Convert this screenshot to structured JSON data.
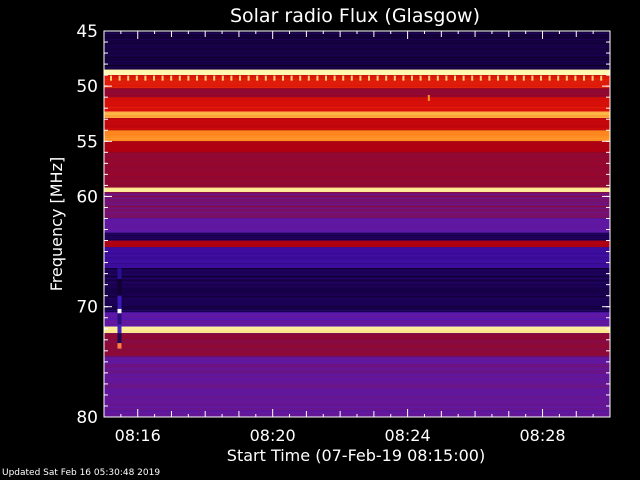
{
  "chart_data": {
    "type": "heatmap",
    "title": "Solar radio Flux (Glasgow)",
    "xlabel": "Start Time (07-Feb-19 08:15:00)",
    "ylabel": "Frequency [MHz]",
    "x_ticks": [
      "08:16",
      "08:20",
      "08:24",
      "08:28"
    ],
    "x_tick_minutes": [
      1,
      5,
      9,
      13
    ],
    "xlim_minutes": [
      0,
      15
    ],
    "y_ticks": [
      45,
      50,
      55,
      60,
      70,
      80
    ],
    "y_tick_labels": [
      "45",
      "50",
      "55",
      "60",
      "70",
      "80"
    ],
    "ylim": [
      45,
      80
    ],
    "y_axis_inverted": true,
    "bands": [
      {
        "f0": 45.0,
        "f1": 48.5,
        "level": 0.08
      },
      {
        "f0": 48.5,
        "f1": 49.0,
        "level": 0.98
      },
      {
        "f0": 49.0,
        "f1": 50.2,
        "level": 0.62
      },
      {
        "f0": 50.2,
        "f1": 51.0,
        "level": 0.42
      },
      {
        "f0": 51.0,
        "f1": 52.3,
        "level": 0.6
      },
      {
        "f0": 52.3,
        "f1": 52.9,
        "level": 0.85
      },
      {
        "f0": 52.9,
        "f1": 54.0,
        "level": 0.55
      },
      {
        "f0": 54.0,
        "f1": 55.0,
        "level": 0.8
      },
      {
        "f0": 55.0,
        "f1": 56.0,
        "level": 0.5
      },
      {
        "f0": 56.0,
        "f1": 59.2,
        "level": 0.42
      },
      {
        "f0": 59.2,
        "f1": 59.6,
        "level": 0.95
      },
      {
        "f0": 59.6,
        "f1": 62.0,
        "level": 0.36
      },
      {
        "f0": 62.0,
        "f1": 63.3,
        "level": 0.3
      },
      {
        "f0": 63.3,
        "f1": 64.0,
        "level": 0.12
      },
      {
        "f0": 64.0,
        "f1": 64.6,
        "level": 0.5
      },
      {
        "f0": 64.6,
        "f1": 66.5,
        "level": 0.2
      },
      {
        "f0": 66.5,
        "f1": 70.5,
        "level": 0.1
      },
      {
        "f0": 70.5,
        "f1": 71.8,
        "level": 0.3
      },
      {
        "f0": 71.8,
        "f1": 72.4,
        "level": 0.95
      },
      {
        "f0": 72.4,
        "f1": 74.5,
        "level": 0.4
      },
      {
        "f0": 74.5,
        "f1": 80.0,
        "level": 0.32
      }
    ],
    "colormap": [
      "#000000",
      "#1a0050",
      "#3d0d9e",
      "#5b1ab0",
      "#8a0a3a",
      "#b00010",
      "#d8100a",
      "#f04010",
      "#ff8a20",
      "#ffd060",
      "#ffffc0"
    ],
    "grid": false
  },
  "footer": {
    "updated": "Updated Sat Feb 16 05:30:48 2019"
  }
}
